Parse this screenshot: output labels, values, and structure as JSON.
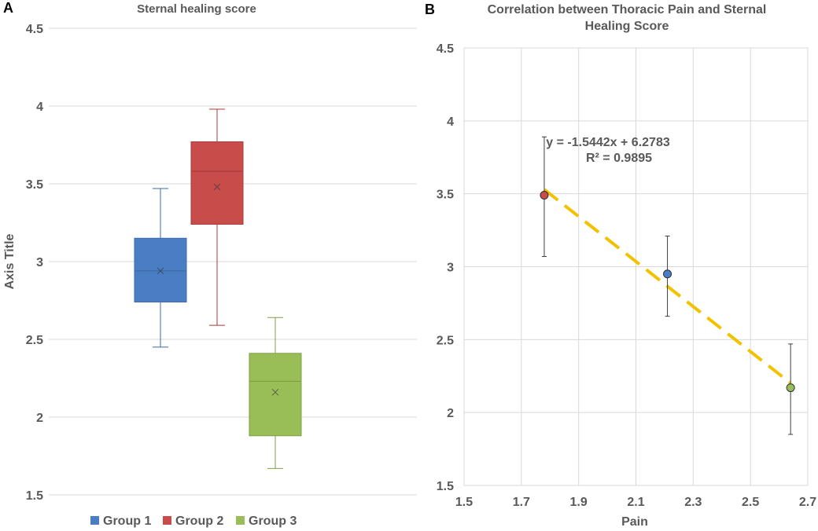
{
  "colors": {
    "group1": "#4A7EC4",
    "group1_stroke": "#3B6AA8",
    "group2": "#C84C4A",
    "group2_stroke": "#A83A38",
    "group3": "#99BD57",
    "group3_stroke": "#7FA043",
    "trendline": "#F2C200",
    "grid": "#D9D9D9",
    "axis_text": "#595959",
    "title_text": "#595959"
  },
  "chart_data": [
    {
      "panel_label": "A",
      "type": "box",
      "title": "Sternal healing score",
      "xlabel": "",
      "ylabel": "Axis Title",
      "ylim": [
        1.5,
        4.5
      ],
      "yticks": [
        "1.5",
        "2",
        "2.5",
        "3",
        "3.5",
        "4",
        "4.5"
      ],
      "grid": true,
      "legend_position": "bottom",
      "series": [
        {
          "name": "Group 1",
          "min": 2.45,
          "q1": 2.74,
          "median": 2.94,
          "mean": 2.94,
          "q3": 3.15,
          "max": 3.47
        },
        {
          "name": "Group 2",
          "min": 2.59,
          "q1": 3.24,
          "median": 3.58,
          "mean": 3.48,
          "q3": 3.77,
          "max": 3.98
        },
        {
          "name": "Group 3",
          "min": 1.67,
          "q1": 1.88,
          "median": 2.23,
          "mean": 2.16,
          "q3": 2.41,
          "max": 2.64
        }
      ]
    },
    {
      "panel_label": "B",
      "type": "scatter",
      "title": "Correlation between Thoracic Pain and Sternal Healing Score",
      "title_lines": [
        "Correlation between Thoracic Pain and Sternal",
        "Healing Score"
      ],
      "xlabel": "Pain",
      "ylabel": "",
      "xlim": [
        1.5,
        2.7
      ],
      "ylim": [
        1.5,
        4.5
      ],
      "xticks": [
        "1.5",
        "1.7",
        "1.9",
        "2.1",
        "2.3",
        "2.5",
        "2.7"
      ],
      "yticks": [
        "1.5",
        "2",
        "2.5",
        "3",
        "3.5",
        "4",
        "4.5"
      ],
      "grid": true,
      "points": [
        {
          "group": "Group 2",
          "x": 1.78,
          "y": 3.49,
          "err_low": 3.07,
          "err_high": 3.89
        },
        {
          "group": "Group 1",
          "x": 2.21,
          "y": 2.95,
          "err_low": 2.66,
          "err_high": 3.21
        },
        {
          "group": "Group 3",
          "x": 2.64,
          "y": 2.17,
          "err_low": 1.85,
          "err_high": 2.47
        }
      ],
      "trendline": {
        "slope": -1.5442,
        "intercept": 6.2783,
        "x_range": [
          1.78,
          2.64
        ],
        "equation": "y = -1.5442x + 6.2783",
        "r2": "R² = 0.9895"
      }
    }
  ]
}
